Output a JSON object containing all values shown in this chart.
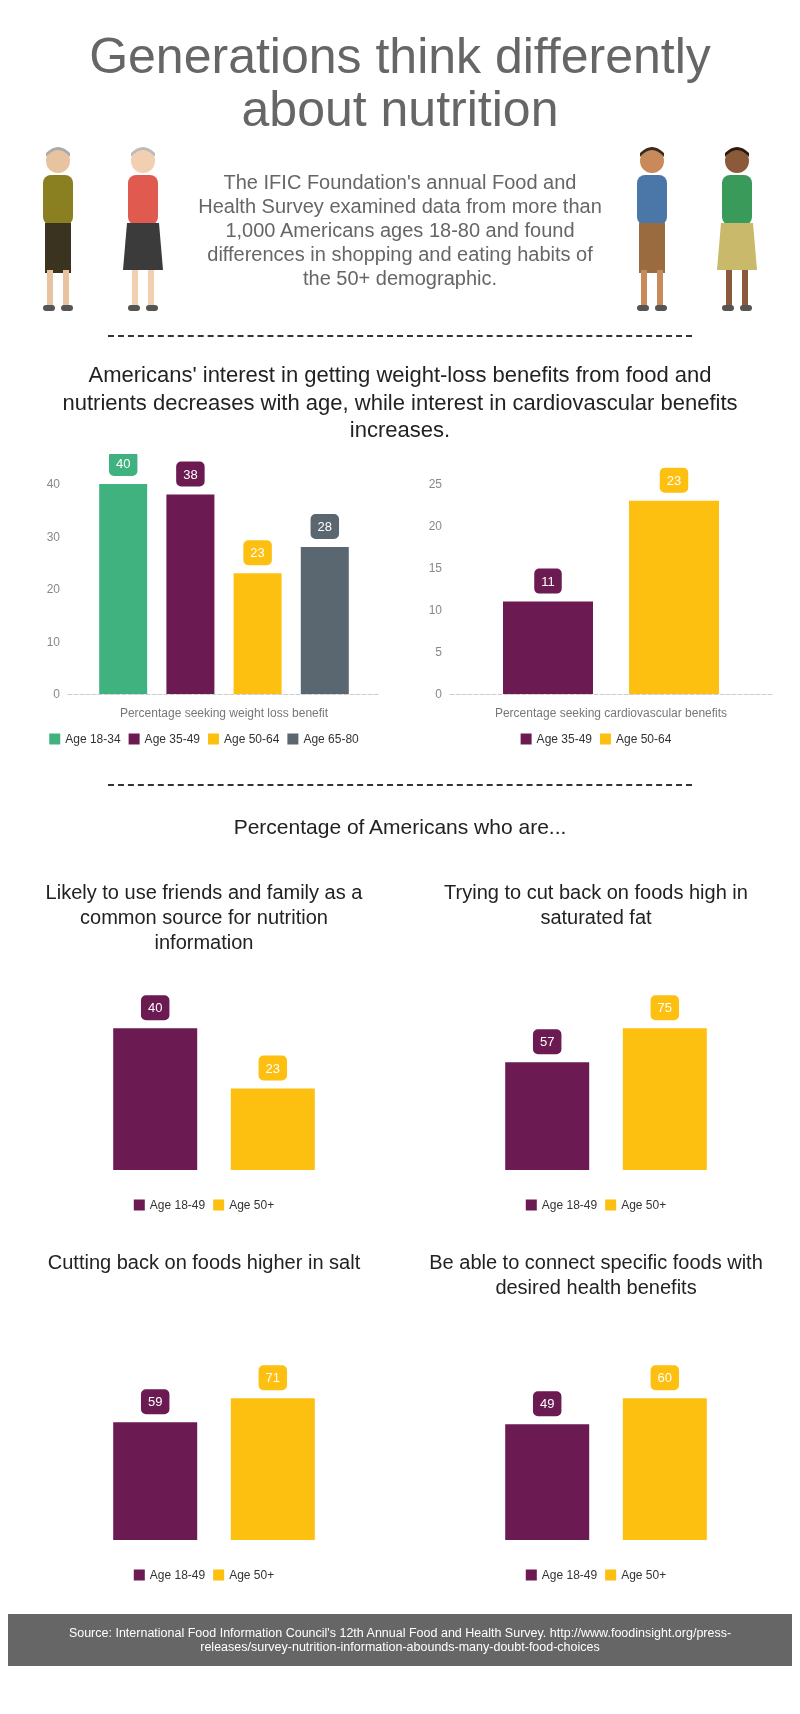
{
  "chart_data": [
    {
      "type": "other",
      "title": "Generations think differently about nutrition",
      "subtitle": "The IFIC Foundation's annual Food and Health Survey examined data from more than 1,000 Americans ages 18-80 and found differences in shopping and eating habits of the 50+ demographic.",
      "annotations": [
        "Source: International Food Information Council's 12th Annual Food and Health Survey. http://www.foodinsight.org/press-releases/survey-nutrition-information-abounds-many-doubt-food-choices"
      ]
    },
    {
      "type": "bar",
      "title": "Americans' interest in getting weight-loss benefits from food and nutrients decreases with age, while interest in cardiovascular benefits increases.",
      "categories": [
        null
      ],
      "xlabel": "Percentage seeking weight loss benefit",
      "series": [
        {
          "name": "Age 18-34",
          "color": "#3fb27f",
          "values": [
            40
          ]
        },
        {
          "name": "Age 35-49",
          "color": "#6b1a52",
          "values": [
            38
          ]
        },
        {
          "name": "Age 50-64",
          "color": "#fdbf10",
          "values": [
            23
          ]
        },
        {
          "name": "Age 65-80",
          "color": "#5a6670",
          "values": [
            28
          ]
        }
      ],
      "ylim": [
        0,
        40
      ],
      "yticks": [
        0,
        10,
        20,
        30,
        40
      ],
      "grid": false,
      "legend": "bottom",
      "data_labels": true
    },
    {
      "type": "bar",
      "categories": [
        null
      ],
      "xlabel": "Percentage seeking cardiovascular benefits",
      "series": [
        {
          "name": "Age 35-49",
          "color": "#6b1a52",
          "values": [
            11
          ]
        },
        {
          "name": "Age 50-64",
          "color": "#fdbf10",
          "values": [
            23
          ]
        }
      ],
      "ylim": [
        0,
        25
      ],
      "yticks": [
        0,
        5,
        10,
        15,
        20,
        25
      ],
      "grid": false,
      "legend": "bottom",
      "data_labels": true
    },
    {
      "type": "other",
      "title": "Percentage of Americans who are..."
    },
    {
      "type": "bar",
      "title": "Likely to use friends and family as a common source for nutrition information",
      "categories": [
        null
      ],
      "series": [
        {
          "name": "Age 18-49",
          "color": "#6b1a52",
          "values": [
            40
          ]
        },
        {
          "name": "Age 50+",
          "color": "#fdbf10",
          "values": [
            23
          ]
        }
      ],
      "legend": "bottom",
      "data_labels": true
    },
    {
      "type": "bar",
      "title": "Trying to cut back on foods high in saturated fat",
      "categories": [
        null
      ],
      "series": [
        {
          "name": "Age 18-49",
          "color": "#6b1a52",
          "values": [
            57
          ]
        },
        {
          "name": "Age 50+",
          "color": "#fdbf10",
          "values": [
            75
          ]
        }
      ],
      "legend": "bottom",
      "data_labels": true
    },
    {
      "type": "bar",
      "title": "Cutting back on foods higher in salt",
      "categories": [
        null
      ],
      "series": [
        {
          "name": "Age 18-49",
          "color": "#6b1a52",
          "values": [
            59
          ]
        },
        {
          "name": "Age 50+",
          "color": "#fdbf10",
          "values": [
            71
          ]
        }
      ],
      "legend": "bottom",
      "data_labels": true
    },
    {
      "type": "bar",
      "title": "Be able to connect specific foods with desired health benefits",
      "categories": [
        null
      ],
      "series": [
        {
          "name": "Age 18-49",
          "color": "#6b1a52",
          "values": [
            49
          ]
        },
        {
          "name": "Age 50+",
          "color": "#fdbf10",
          "values": [
            60
          ]
        }
      ],
      "legend": "bottom",
      "data_labels": true
    }
  ]
}
